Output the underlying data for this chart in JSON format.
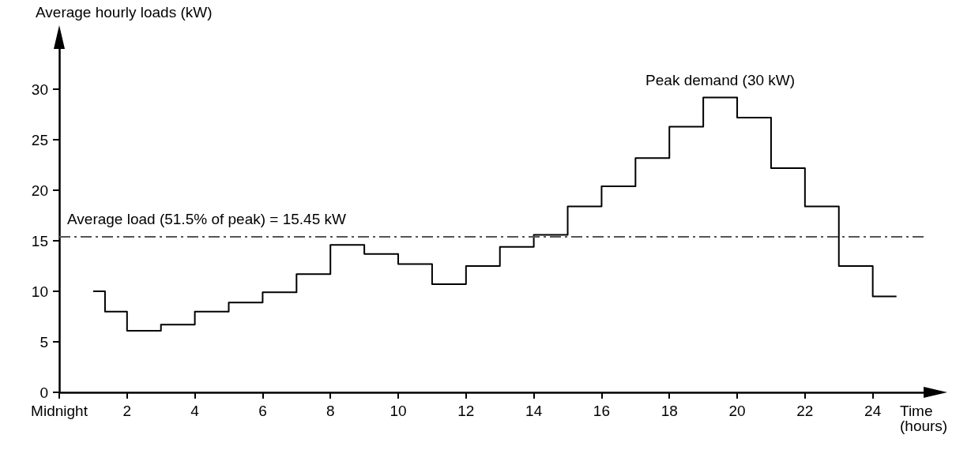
{
  "chart_data": {
    "type": "step",
    "ylabel": "Average hourly loads (kW)",
    "xlabel": "Time (hours)",
    "x": [
      1,
      1.35,
      2,
      3,
      4,
      5,
      6,
      7,
      8,
      9,
      10,
      11,
      12,
      13,
      14,
      15,
      16,
      17,
      18,
      19,
      20,
      21,
      22,
      23,
      24,
      24.7
    ],
    "series": [
      {
        "color": "#000000",
        "values": [
          10,
          8,
          6.1,
          6.7,
          8,
          8.9,
          9.9,
          11.7,
          14.6,
          13.7,
          12.7,
          10.7,
          12.5,
          14.4,
          15.6,
          18.4,
          20.4,
          23.2,
          26.3,
          29.2,
          27.2,
          22.2,
          18.4,
          12.5,
          9.5,
          9.5
        ]
      }
    ],
    "xlim": [
      0,
      25.5
    ],
    "xticks": [
      {
        "value": 0,
        "label": "Midnight"
      },
      2,
      4,
      6,
      8,
      10,
      12,
      14,
      16,
      18,
      20,
      22,
      24
    ],
    "ylim": [
      0,
      34
    ],
    "yticks": [
      0,
      5,
      10,
      15,
      20,
      25,
      30
    ],
    "ref_lines": [
      {
        "axis": "y",
        "value": 15.45,
        "label": "Average load (51.5% of peak) = 15.45 kW",
        "color": "#555555",
        "line_style": "dashed"
      }
    ],
    "annotations": [
      {
        "text": "Peak demand (30 kW)",
        "x": 19.5,
        "y": 29.2
      }
    ],
    "grid": false,
    "marker": "none",
    "line_style": "solid"
  }
}
